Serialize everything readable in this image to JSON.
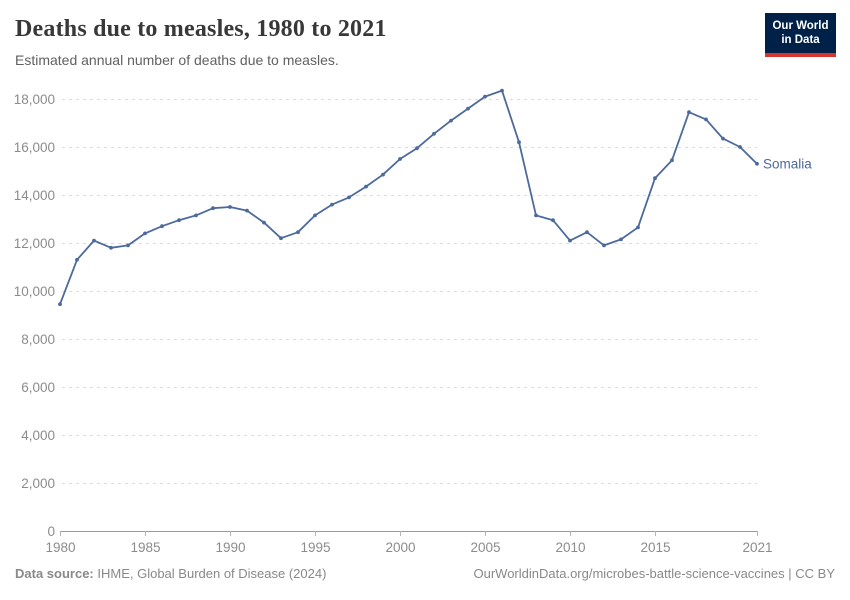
{
  "header": {
    "title": "Deaths due to measles, 1980 to 2021",
    "subtitle": "Estimated annual number of deaths due to measles.",
    "logo": {
      "line1": "Our World",
      "line2": "in Data",
      "bg_color": "#002147",
      "accent_color": "#d7332f"
    }
  },
  "chart_data": {
    "type": "line",
    "title": "Deaths due to measles, 1980 to 2021",
    "subtitle": "Estimated annual number of deaths due to measles.",
    "xlabel": "",
    "ylabel": "",
    "xlim": [
      1980,
      2021
    ],
    "ylim": [
      0,
      18000
    ],
    "grid": "horizontal-dashed",
    "legend": "entity-label-at-line-end",
    "series": [
      {
        "name": "Somalia",
        "color": "#4c6a9c",
        "x": [
          1980,
          1981,
          1982,
          1983,
          1984,
          1985,
          1986,
          1987,
          1988,
          1989,
          1990,
          1991,
          1992,
          1993,
          1994,
          1995,
          1996,
          1997,
          1998,
          1999,
          2000,
          2001,
          2002,
          2003,
          2004,
          2005,
          2006,
          2007,
          2008,
          2009,
          2010,
          2011,
          2012,
          2013,
          2014,
          2015,
          2016,
          2017,
          2018,
          2019,
          2020,
          2021
        ],
        "values": [
          9450,
          11300,
          12100,
          11800,
          11900,
          12400,
          12700,
          12950,
          13150,
          13450,
          13500,
          13350,
          12850,
          12200,
          12450,
          13150,
          13600,
          13900,
          14350,
          14850,
          15500,
          15950,
          16550,
          17100,
          17600,
          18100,
          18350,
          16200,
          13150,
          12950,
          12100,
          12450,
          11900,
          12150,
          12650,
          14700,
          15450,
          17450,
          17150,
          16350,
          16000,
          15300
        ]
      }
    ],
    "yticks": [
      {
        "value": 0,
        "label": "0"
      },
      {
        "value": 2000,
        "label": "2,000"
      },
      {
        "value": 4000,
        "label": "4,000"
      },
      {
        "value": 6000,
        "label": "6,000"
      },
      {
        "value": 8000,
        "label": "8,000"
      },
      {
        "value": 10000,
        "label": "10,000"
      },
      {
        "value": 12000,
        "label": "12,000"
      },
      {
        "value": 14000,
        "label": "14,000"
      },
      {
        "value": 16000,
        "label": "16,000"
      },
      {
        "value": 18000,
        "label": "18,000"
      }
    ],
    "xticks": [
      {
        "value": 1980,
        "label": "1980"
      },
      {
        "value": 1985,
        "label": "1985"
      },
      {
        "value": 1990,
        "label": "1990"
      },
      {
        "value": 1995,
        "label": "1995"
      },
      {
        "value": 2000,
        "label": "2000"
      },
      {
        "value": 2005,
        "label": "2005"
      },
      {
        "value": 2010,
        "label": "2010"
      },
      {
        "value": 2015,
        "label": "2015"
      },
      {
        "value": 2021,
        "label": "2021"
      }
    ]
  },
  "footer": {
    "data_source_label": "Data source:",
    "data_source_value": "IHME, Global Burden of Disease (2024)",
    "credit": "OurWorldinData.org/microbes-battle-science-vaccines | CC BY"
  }
}
